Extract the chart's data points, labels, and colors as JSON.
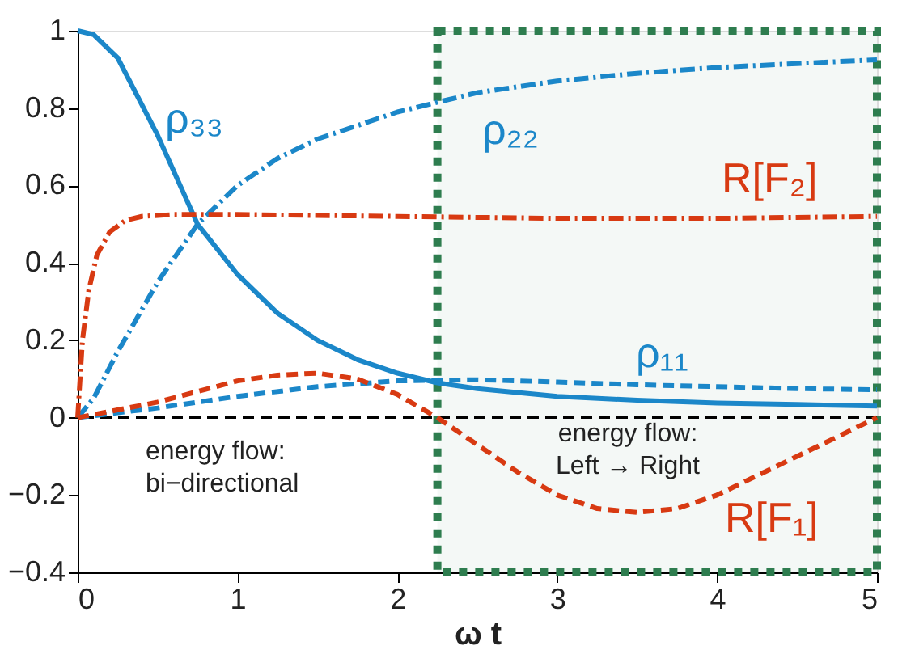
{
  "chart_data": {
    "type": "line",
    "xlabel": "ω t",
    "xlim": [
      0,
      5
    ],
    "xticks": [
      0,
      1,
      2,
      3,
      4,
      5
    ],
    "ylim": [
      -0.4,
      1
    ],
    "yticks": [
      {
        "value": -0.4,
        "label": "−0.4"
      },
      {
        "value": -0.2,
        "label": "−0.2"
      },
      0,
      0.2,
      0.4,
      0.6,
      0.8,
      1
    ],
    "grid": false,
    "marker": "none",
    "series": [
      {
        "name": "ρ₃₃",
        "color": "#1b87c9",
        "line_style": "solid",
        "x": [
          0,
          0.1,
          0.25,
          0.5,
          0.75,
          1,
          1.25,
          1.5,
          1.75,
          2,
          2.25,
          2.5,
          3,
          3.5,
          4,
          4.5,
          5
        ],
        "values": [
          1,
          0.99,
          0.93,
          0.73,
          0.5,
          0.37,
          0.27,
          0.2,
          0.15,
          0.115,
          0.09,
          0.075,
          0.055,
          0.045,
          0.038,
          0.034,
          0.03
        ]
      },
      {
        "name": "ρ₂₂",
        "color": "#1b87c9",
        "line_style": "dashdot",
        "x": [
          0,
          0.1,
          0.25,
          0.5,
          0.75,
          1,
          1.25,
          1.5,
          2,
          2.5,
          3,
          3.5,
          4,
          4.5,
          5
        ],
        "values": [
          0,
          0.05,
          0.17,
          0.35,
          0.5,
          0.6,
          0.67,
          0.72,
          0.79,
          0.84,
          0.87,
          0.89,
          0.905,
          0.915,
          0.925
        ]
      },
      {
        "name": "R[F₂]",
        "color": "#d83a12",
        "line_style": "dashdot",
        "x": [
          0,
          0.03,
          0.07,
          0.12,
          0.2,
          0.3,
          0.4,
          0.6,
          1,
          2,
          3,
          4,
          5
        ],
        "values": [
          0,
          0.2,
          0.33,
          0.42,
          0.48,
          0.51,
          0.52,
          0.525,
          0.525,
          0.52,
          0.515,
          0.515,
          0.52
        ]
      },
      {
        "name": "ρ₁₁",
        "color": "#1b87c9",
        "line_style": "dashed",
        "x": [
          0,
          0.5,
          1,
          1.5,
          2,
          2.5,
          3,
          3.5,
          4,
          4.5,
          5
        ],
        "values": [
          0,
          0.025,
          0.055,
          0.08,
          0.095,
          0.098,
          0.092,
          0.085,
          0.08,
          0.075,
          0.072
        ]
      },
      {
        "name": "R[F₁]",
        "color": "#d83a12",
        "line_style": "dashed",
        "x": [
          0,
          0.5,
          1,
          1.25,
          1.5,
          1.75,
          2,
          2.25,
          2.5,
          2.75,
          3,
          3.25,
          3.5,
          3.75,
          4,
          4.25,
          4.5,
          4.75,
          5
        ],
        "values": [
          0,
          0.04,
          0.095,
          0.11,
          0.115,
          0.1,
          0.06,
          0,
          -0.07,
          -0.14,
          -0.2,
          -0.235,
          -0.245,
          -0.235,
          -0.2,
          -0.15,
          -0.1,
          -0.05,
          0
        ]
      }
    ],
    "ref_lines": [
      {
        "axis": "y",
        "value": 0,
        "color": "#000000",
        "line_style": "dashed"
      }
    ],
    "bands": [
      {
        "axis": "x",
        "from": 2.25,
        "to": 5,
        "color": "#2e7d4f"
      }
    ],
    "annotations": [
      "energy flow:\nbi−directional",
      "energy flow:\nLeft → Right"
    ]
  }
}
